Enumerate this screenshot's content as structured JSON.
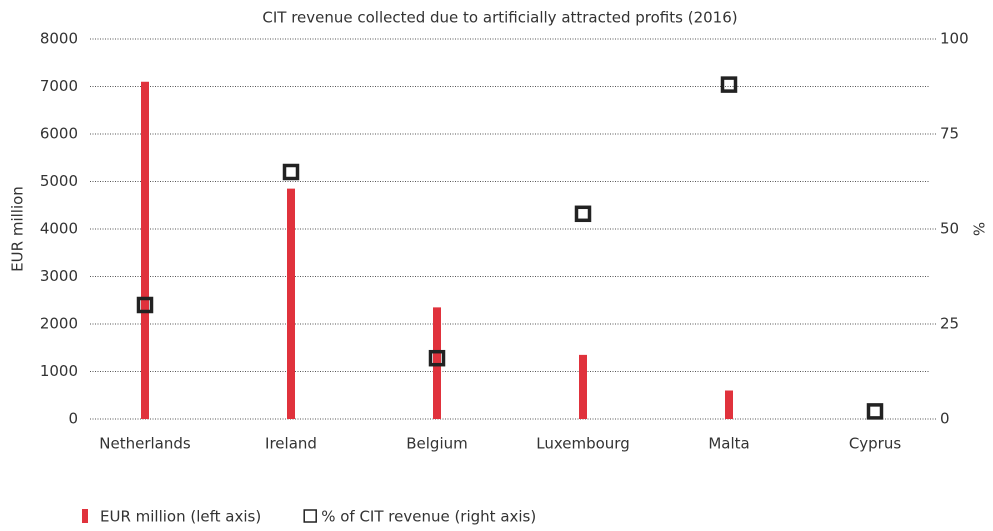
{
  "chart_data": {
    "type": "bar",
    "title": "CIT revenue collected due to artificially attracted profits (2016)",
    "categories": [
      "Netherlands",
      "Ireland",
      "Belgium",
      "Luxembourg",
      "Malta",
      "Cyprus"
    ],
    "series": [
      {
        "name": "EUR million (left axis)",
        "color": "#e0323c",
        "values": [
          7100,
          4850,
          2350,
          1350,
          600,
          0
        ]
      },
      {
        "name": "% of CIT revenue (right axis)",
        "color": "#222222",
        "axis": "y2",
        "values": [
          30,
          65,
          16,
          54,
          88,
          2
        ]
      }
    ],
    "ylabel": "EUR million",
    "y2label": "%",
    "ylim": [
      0,
      8000
    ],
    "yticks": [
      0,
      1000,
      2000,
      3000,
      4000,
      5000,
      6000,
      7000,
      8000
    ],
    "y2lim": [
      0,
      100
    ],
    "y2ticks": [
      0,
      25,
      50,
      75,
      100
    ],
    "grid": true,
    "legend": "bottom-left"
  }
}
